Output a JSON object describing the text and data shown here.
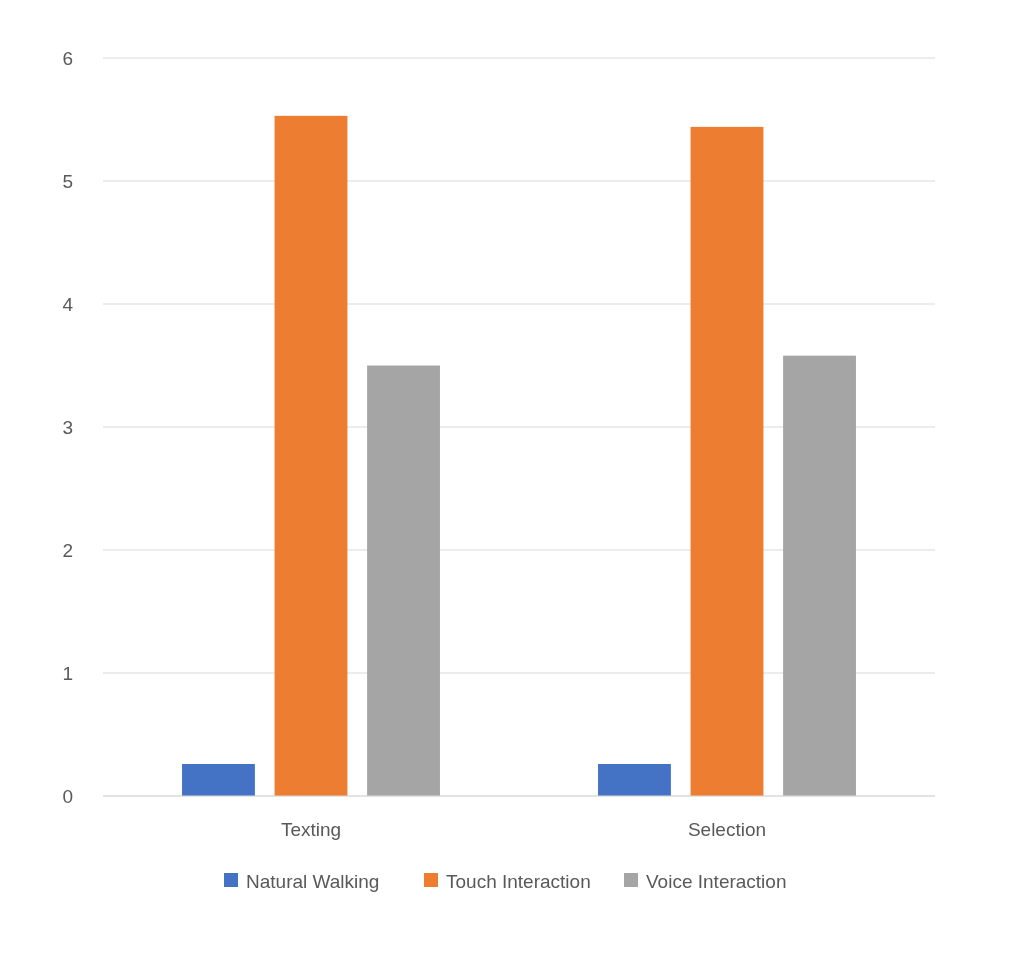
{
  "chart_data": {
    "type": "bar",
    "categories": [
      "Texting",
      "Selection"
    ],
    "series": [
      {
        "name": "Natural Walking",
        "color": "#4472c4",
        "values": [
          0.26,
          0.26
        ]
      },
      {
        "name": "Touch Interaction",
        "color": "#ed7d31",
        "values": [
          5.53,
          5.44
        ]
      },
      {
        "name": "Voice Interaction",
        "color": "#a5a5a5",
        "values": [
          3.5,
          3.58
        ]
      }
    ],
    "ylim": [
      0,
      6
    ],
    "yticks": [
      0,
      1,
      2,
      3,
      4,
      5,
      6
    ],
    "grid": "y",
    "legend": "bottom"
  }
}
